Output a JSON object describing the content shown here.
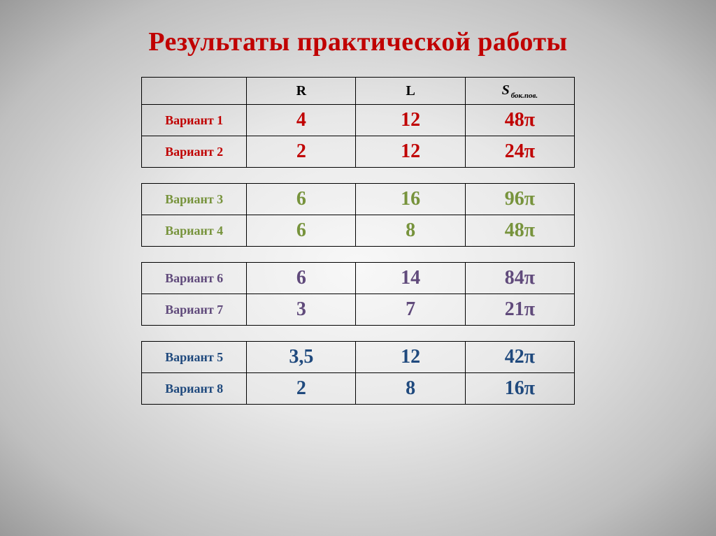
{
  "title": "Результаты практической работы",
  "headers": {
    "r": "R",
    "l": "L",
    "s_main": "S",
    "s_sub": "бок.пов."
  },
  "colors": {
    "red": "#c00000",
    "olive": "#77933c",
    "purple": "#604a7b",
    "navy": "#1f497d"
  },
  "groups": [
    {
      "color_class": "c-red",
      "rows": [
        {
          "label": "Вариант 1",
          "r": "4",
          "l": "12",
          "s": "48π"
        },
        {
          "label": "Вариант 2",
          "r": "2",
          "l": "12",
          "s": "24π"
        }
      ]
    },
    {
      "color_class": "c-olive",
      "rows": [
        {
          "label": "Вариант 3",
          "r": "6",
          "l": "16",
          "s": "96π"
        },
        {
          "label": "Вариант 4",
          "r": "6",
          "l": "8",
          "s": "48π"
        }
      ]
    },
    {
      "color_class": "c-purple",
      "rows": [
        {
          "label": "Вариант 6",
          "r": "6",
          "l": "14",
          "s": "84π"
        },
        {
          "label": "Вариант 7",
          "r": "3",
          "l": "7",
          "s": "21π"
        }
      ]
    },
    {
      "color_class": "c-navy",
      "rows": [
        {
          "label": "Вариант 5",
          "r": "3,5",
          "l": "12",
          "s": "42π"
        },
        {
          "label": "Вариант 8",
          "r": "2",
          "l": "8",
          "s": "16π"
        }
      ]
    }
  ]
}
